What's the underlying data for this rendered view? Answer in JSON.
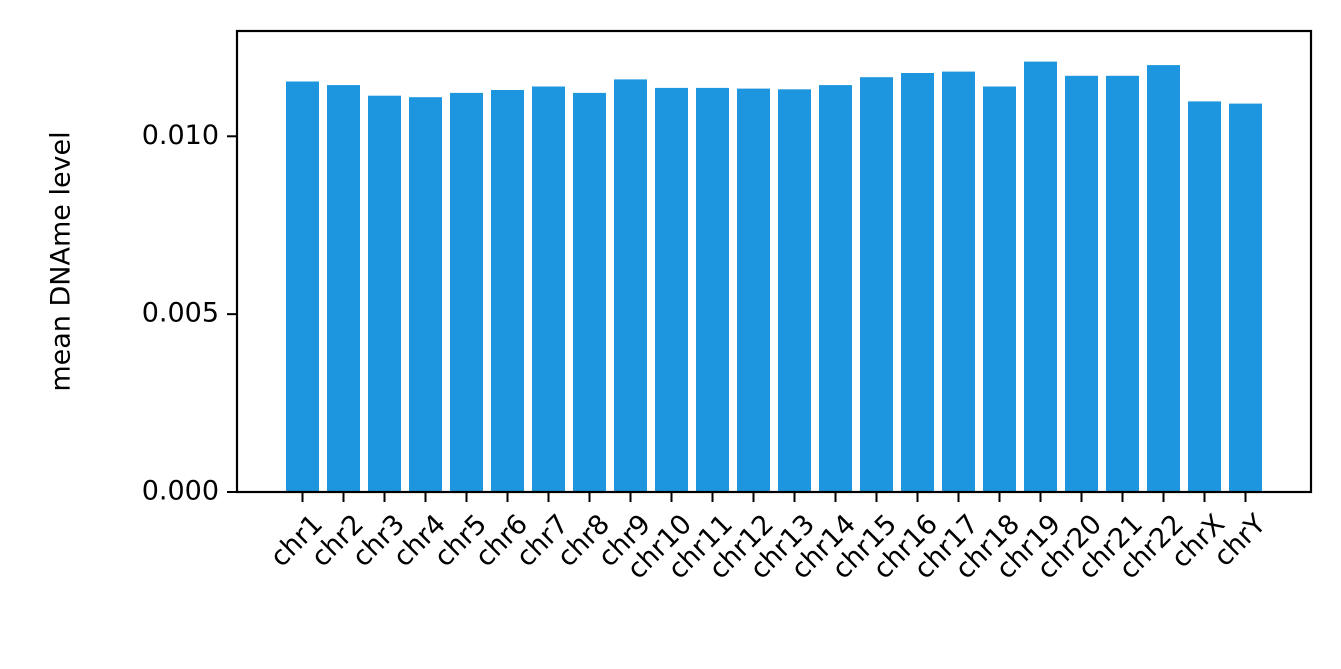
{
  "chart_data": {
    "type": "bar",
    "title": "",
    "xlabel": "",
    "ylabel": "mean DNAme level",
    "categories": [
      "chr1",
      "chr2",
      "chr3",
      "chr4",
      "chr5",
      "chr6",
      "chr7",
      "chr8",
      "chr9",
      "chr10",
      "chr11",
      "chr12",
      "chr13",
      "chr14",
      "chr15",
      "chr16",
      "chr17",
      "chr18",
      "chr19",
      "chr20",
      "chr21",
      "chr22",
      "chrX",
      "chrY"
    ],
    "values": [
      0.01154,
      0.01144,
      0.01114,
      0.0111,
      0.01122,
      0.0113,
      0.0114,
      0.01122,
      0.0116,
      0.01136,
      0.01136,
      0.01134,
      0.01132,
      0.01144,
      0.01166,
      0.01178,
      0.01182,
      0.0114,
      0.0121,
      0.0117,
      0.0117,
      0.012,
      0.01098,
      0.01092
    ],
    "ylim": [
      0,
      0.01296
    ],
    "yticks": [
      0.0,
      0.005,
      0.01
    ],
    "ytick_labels": [
      "0.000",
      "0.005",
      "0.010"
    ],
    "bar_color": "#1e96df",
    "grid": false,
    "legend": "none"
  }
}
